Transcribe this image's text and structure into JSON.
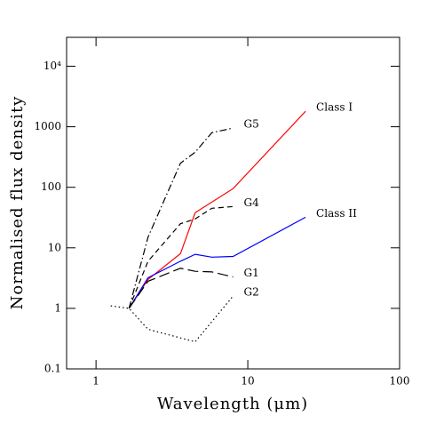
{
  "chart_data": {
    "type": "line",
    "xlabel": "Wavelength (μm)",
    "ylabel": "Normalised flux density",
    "xscale": "log",
    "yscale": "log",
    "xlim": [
      0.64,
      100
    ],
    "ylim": [
      0.1,
      30000
    ],
    "xticks": [
      1,
      10,
      100
    ],
    "yticks": [
      0.1,
      1,
      10,
      100,
      1000,
      {
        "value": 10000,
        "label": "10⁴"
      }
    ],
    "series": [
      {
        "name": "Class I",
        "color": "#ff0000",
        "style": "solid",
        "x": [
          1.65,
          2.2,
          3.6,
          4.5,
          8,
          24
        ],
        "values": [
          1,
          3,
          8,
          38,
          95,
          1800
        ]
      },
      {
        "name": "Class II",
        "color": "#0000ff",
        "style": "solid",
        "x": [
          1.65,
          2.2,
          3.6,
          4.5,
          5.8,
          8,
          24
        ],
        "values": [
          1,
          3.2,
          6,
          7.8,
          7,
          7.2,
          32
        ]
      },
      {
        "name": "G1",
        "color": "#000000",
        "style": "longdash",
        "x": [
          1.65,
          2.2,
          3.6,
          4.5,
          5.8,
          8
        ],
        "values": [
          1,
          2.8,
          4.6,
          4.1,
          4,
          3.3
        ]
      },
      {
        "name": "G2",
        "color": "#000000",
        "style": "dotted",
        "x": [
          1.25,
          1.65,
          2.2,
          4.5,
          8
        ],
        "values": [
          1.1,
          1,
          0.45,
          0.28,
          1.6
        ]
      },
      {
        "name": "G4",
        "color": "#000000",
        "style": "dashed",
        "x": [
          1.65,
          2.2,
          3.6,
          4.5,
          5.8,
          8
        ],
        "values": [
          1,
          6,
          25,
          30,
          45,
          48
        ]
      },
      {
        "name": "G5",
        "color": "#000000",
        "style": "dashdot",
        "x": [
          1.65,
          2.2,
          3.6,
          4.5,
          5.8,
          8
        ],
        "values": [
          1,
          15,
          250,
          380,
          800,
          950
        ]
      }
    ]
  }
}
